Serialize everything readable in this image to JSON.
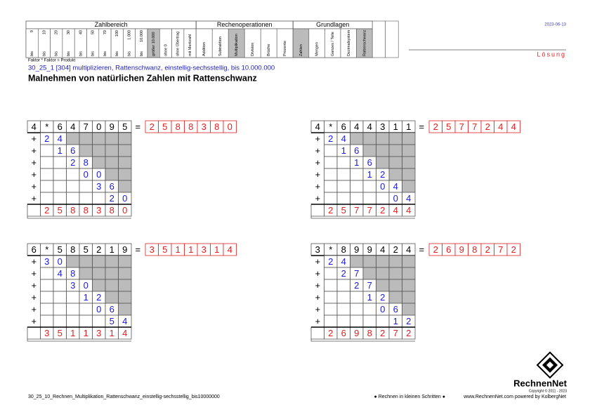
{
  "header": {
    "date": "2023-06-13",
    "solution": "Lösung",
    "formula": "Faktor * Faktor = Produkt",
    "code": "30_25_1  [304]  multiplizieren, Rattenschwanz, einstellig-sechsstellig, bis 10.000.000",
    "title": "Malnehmen von natürlichen Zahlen mit Rattenschwanz"
  },
  "categories": [
    {
      "title": "Zahlbereich",
      "columns": [
        {
          "label": "9",
          "sub": "bis"
        },
        {
          "label": "10",
          "sub": "bis"
        },
        {
          "label": "20",
          "sub": "bis"
        },
        {
          "label": "30",
          "sub": "bis"
        },
        {
          "label": "40",
          "sub": "bis"
        },
        {
          "label": "50",
          "sub": "bis"
        },
        {
          "label": "70",
          "sub": "bis"
        },
        {
          "label": "100",
          "sub": "bis"
        },
        {
          "label": "1.000",
          "sub": "bis"
        },
        {
          "label": "10.000",
          "sub": "bis"
        },
        {
          "label": "größer 10.000",
          "shaded": true
        },
        {
          "label": "ohne 0"
        },
        {
          "label": "ohne Übertrag"
        },
        {
          "label": "mit Merkzahl"
        }
      ]
    },
    {
      "title": "Rechenoperationen",
      "columns": [
        {
          "label": "Addition"
        },
        {
          "label": "Subtraktion"
        },
        {
          "label": "Multiplikation",
          "shaded": true
        },
        {
          "label": "Division"
        },
        {
          "label": "Brüche"
        },
        {
          "label": "Prozente"
        }
      ]
    },
    {
      "title": "Grundlagen",
      "columns": [
        {
          "label": "Zahlen",
          "shaded": true
        },
        {
          "label": "Mengen"
        },
        {
          "label": "Ganzes / Teile"
        },
        {
          "label": "Dezimalsystem"
        },
        {
          "label": "Rattenschwanz",
          "shaded": true
        }
      ]
    }
  ],
  "symbols": {
    "times": "*",
    "equals": "=",
    "plus": "+"
  },
  "problems": [
    {
      "factor": "4",
      "number": [
        "6",
        "4",
        "7",
        "0",
        "9",
        "5"
      ],
      "result": [
        "2",
        "5",
        "8",
        "8",
        "3",
        "8",
        "0"
      ],
      "partials": [
        [
          "2",
          "4"
        ],
        [
          "1",
          "6"
        ],
        [
          "2",
          "8"
        ],
        [
          "0",
          "0"
        ],
        [
          "3",
          "6"
        ],
        [
          "2",
          "0"
        ]
      ]
    },
    {
      "factor": "4",
      "number": [
        "6",
        "4",
        "4",
        "3",
        "1",
        "1"
      ],
      "result": [
        "2",
        "5",
        "7",
        "7",
        "2",
        "4",
        "4"
      ],
      "partials": [
        [
          "2",
          "4"
        ],
        [
          "1",
          "6"
        ],
        [
          "1",
          "6"
        ],
        [
          "1",
          "2"
        ],
        [
          "0",
          "4"
        ],
        [
          "0",
          "4"
        ]
      ]
    },
    {
      "factor": "6",
      "number": [
        "5",
        "8",
        "5",
        "2",
        "1",
        "9"
      ],
      "result": [
        "3",
        "5",
        "1",
        "1",
        "3",
        "1",
        "4"
      ],
      "partials": [
        [
          "3",
          "0"
        ],
        [
          "4",
          "8"
        ],
        [
          "3",
          "0"
        ],
        [
          "1",
          "2"
        ],
        [
          "0",
          "6"
        ],
        [
          "5",
          "4"
        ]
      ]
    },
    {
      "factor": "3",
      "number": [
        "8",
        "9",
        "9",
        "4",
        "2",
        "4"
      ],
      "result": [
        "2",
        "6",
        "9",
        "8",
        "2",
        "7",
        "2"
      ],
      "partials": [
        [
          "2",
          "4"
        ],
        [
          "2",
          "7"
        ],
        [
          "2",
          "7"
        ],
        [
          "1",
          "2"
        ],
        [
          "0",
          "6"
        ],
        [
          "1",
          "2"
        ]
      ]
    }
  ],
  "footer": {
    "file": "30_25_10_Rechnen_Multiplikation_Rattenschwanz_einstellig-sechsstellig_bis10000000",
    "motto": "● Rechnen in kleinen Schritten ●",
    "site": "www.RechnenNet.com powered by KolbergNet",
    "brand": "RechnenNet",
    "copyright": "Copyright © 2011 - 2023"
  }
}
